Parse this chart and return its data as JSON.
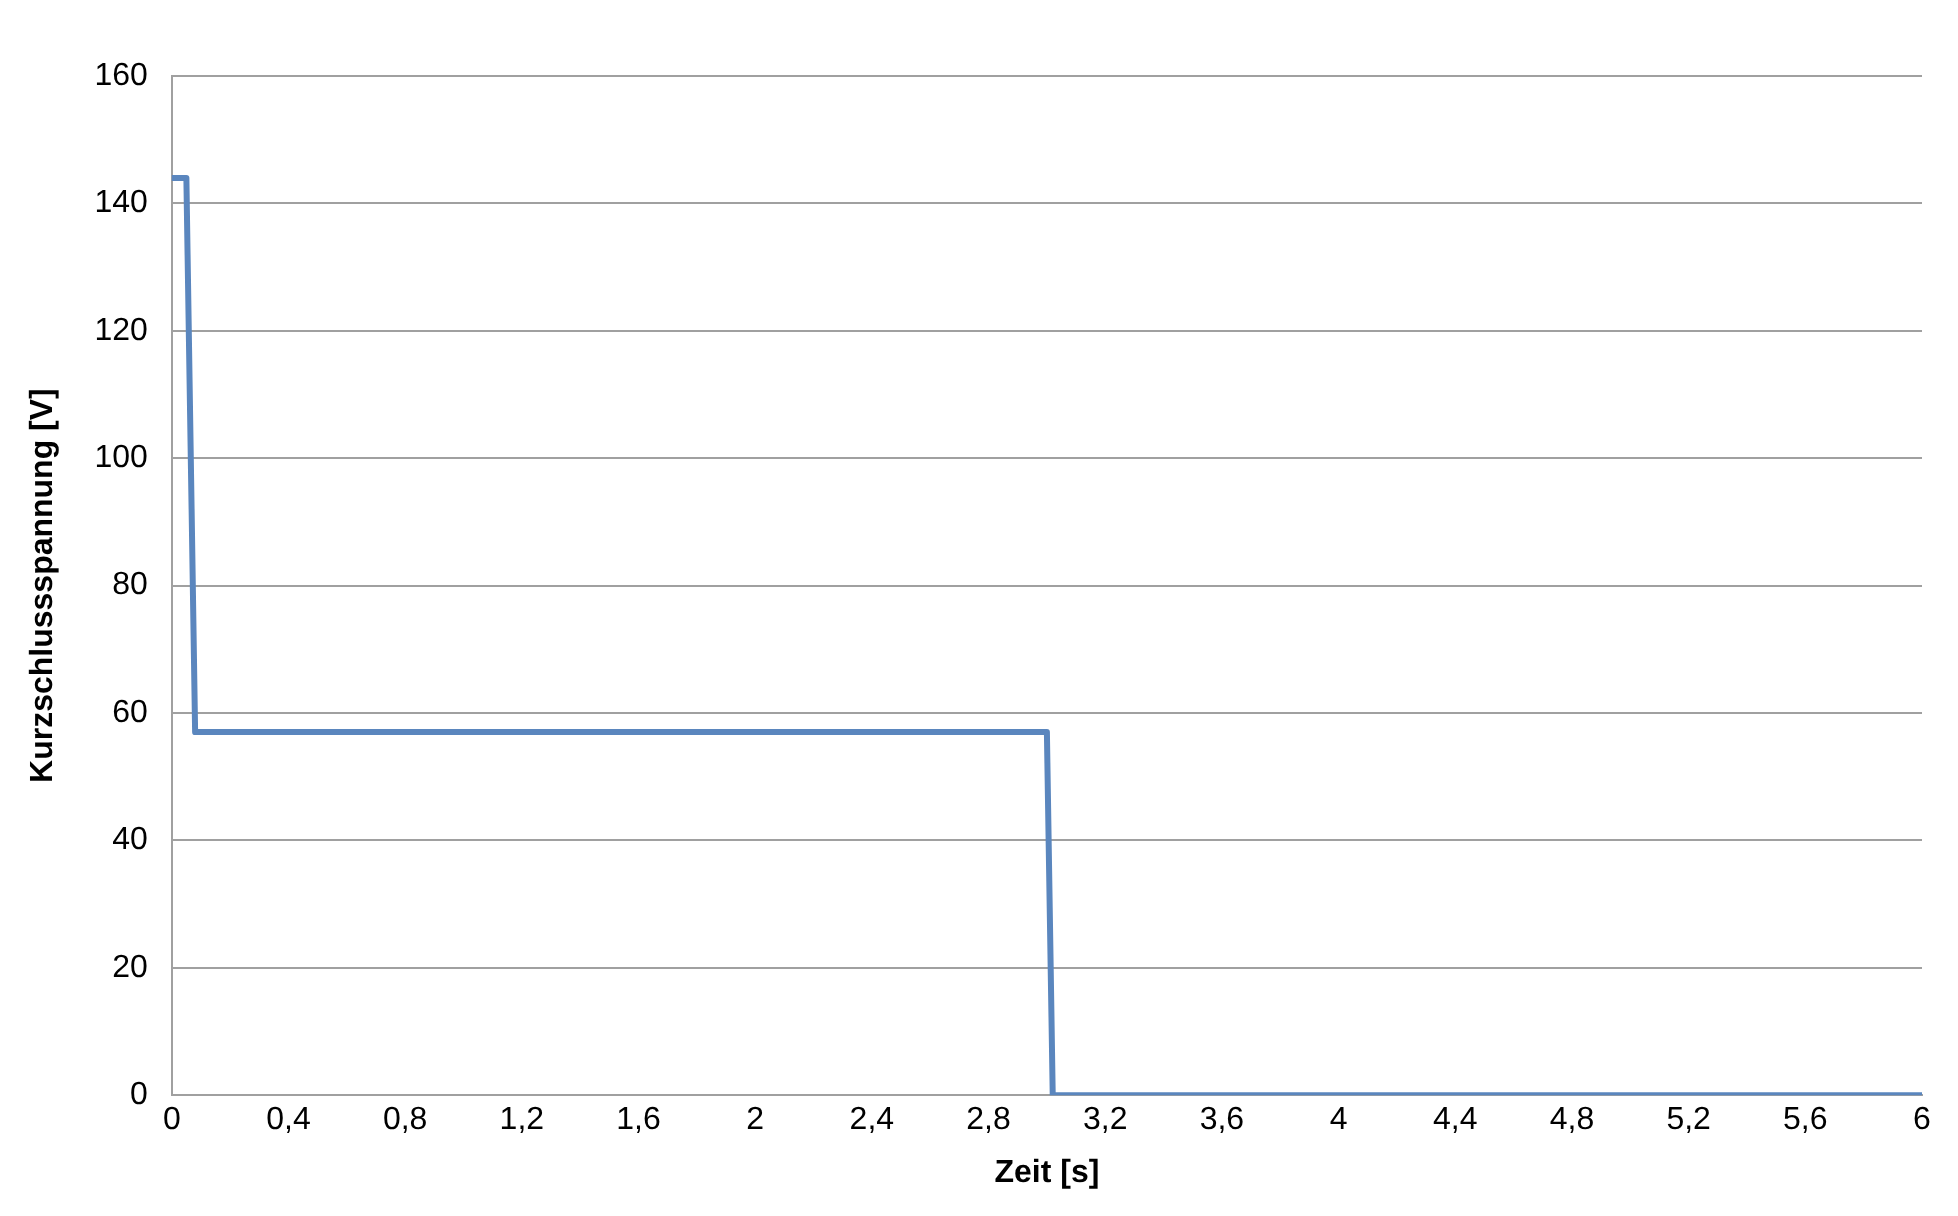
{
  "chart_data": {
    "type": "line",
    "xlabel": "Zeit [s]",
    "ylabel": "Kurzschlussspannung [V]",
    "series": [
      {
        "color": "#5a86be",
        "x": [
          0,
          0.05,
          0.08,
          3.0,
          3.02,
          6
        ],
        "values": [
          144,
          144,
          57,
          57,
          0,
          0
        ]
      }
    ],
    "xlim": [
      0,
      6
    ],
    "xticks": [
      0,
      {
        "value": 0.4,
        "label": "0,4"
      },
      {
        "value": 0.8,
        "label": "0,8"
      },
      {
        "value": 1.2,
        "label": "1,2"
      },
      {
        "value": 1.6,
        "label": "1,6"
      },
      2,
      {
        "value": 2.4,
        "label": "2,4"
      },
      {
        "value": 2.8,
        "label": "2,8"
      },
      {
        "value": 3.2,
        "label": "3,2"
      },
      {
        "value": 3.6,
        "label": "3,6"
      },
      4,
      {
        "value": 4.4,
        "label": "4,4"
      },
      {
        "value": 4.8,
        "label": "4,8"
      },
      {
        "value": 5.2,
        "label": "5,2"
      },
      {
        "value": 5.6,
        "label": "5,6"
      },
      6
    ],
    "ylim": [
      0,
      160
    ],
    "yticks": [
      0,
      20,
      40,
      60,
      80,
      100,
      120,
      140,
      160
    ],
    "grid": "y",
    "legend": false,
    "marker": "none",
    "line_style": "solid"
  }
}
